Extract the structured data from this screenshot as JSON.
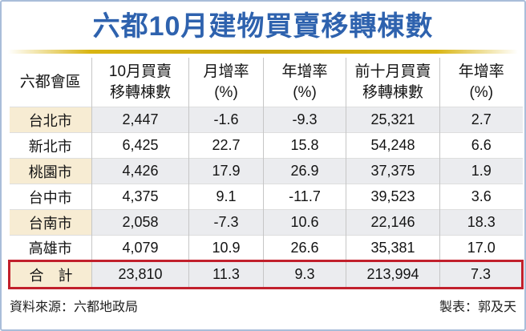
{
  "title": "六都10月建物買賣移轉棟數",
  "colors": {
    "title_blue": "#2e62ae",
    "gold_line": "#c9a50e",
    "city_stripe_cream": "#f7ecd3",
    "data_stripe_gray": "#ebecef",
    "total_outline_red": "#c1202c",
    "frame_border_blue": "#a9bdd9",
    "grid_gray": "#c6c6c6"
  },
  "table": {
    "headers": [
      {
        "line1": "六都會區",
        "line2": ""
      },
      {
        "line1": "10月買賣",
        "line2": "移轉棟數"
      },
      {
        "line1": "月增率",
        "line2": "(%)"
      },
      {
        "line1": "年增率",
        "line2": "(%)"
      },
      {
        "line1": "前十月買賣",
        "line2": "移轉棟數"
      },
      {
        "line1": "年增率",
        "line2": "(%)"
      }
    ],
    "rows": [
      {
        "city": "台北市",
        "values": [
          "2,447",
          "-1.6",
          "-9.3",
          "25,321",
          "2.7"
        ]
      },
      {
        "city": "新北市",
        "values": [
          "6,425",
          "22.7",
          "15.8",
          "54,248",
          "6.6"
        ]
      },
      {
        "city": "桃園市",
        "values": [
          "4,426",
          "17.9",
          "26.9",
          "37,375",
          "1.9"
        ]
      },
      {
        "city": "台中市",
        "values": [
          "4,375",
          "9.1",
          "-11.7",
          "39,523",
          "3.6"
        ]
      },
      {
        "city": "台南市",
        "values": [
          "2,058",
          "-7.3",
          "10.6",
          "22,146",
          "18.3"
        ]
      },
      {
        "city": "高雄市",
        "values": [
          "4,079",
          "10.9",
          "26.6",
          "35,381",
          "17.0"
        ]
      }
    ],
    "total": {
      "city": "合　計",
      "values": [
        "23,810",
        "11.3",
        "9.3",
        "213,994",
        "7.3"
      ]
    }
  },
  "footer": {
    "source": "資料來源：六都地政局",
    "credit": "製表：郭及天"
  },
  "chart_data": {
    "type": "table",
    "title": "六都10月建物買賣移轉棟數",
    "columns": [
      "六都會區",
      "10月買賣移轉棟數",
      "月增率(%)",
      "年增率(%)",
      "前十月買賣移轉棟數",
      "年增率(%)"
    ],
    "rows": [
      [
        "台北市",
        2447,
        -1.6,
        -9.3,
        25321,
        2.7
      ],
      [
        "新北市",
        6425,
        22.7,
        15.8,
        54248,
        6.6
      ],
      [
        "桃園市",
        4426,
        17.9,
        26.9,
        37375,
        1.9
      ],
      [
        "台中市",
        4375,
        9.1,
        -11.7,
        39523,
        3.6
      ],
      [
        "台南市",
        2058,
        -7.3,
        10.6,
        22146,
        18.3
      ],
      [
        "高雄市",
        4079,
        10.9,
        26.6,
        35381,
        17.0
      ],
      [
        "合計",
        23810,
        11.3,
        9.3,
        213994,
        7.3
      ]
    ],
    "source": "資料來源：六都地政局",
    "credit": "製表：郭及天",
    "layout_hints": "total row outlined in red; odd rows striped (cream city cell, gray value cells); gold divider under blue bold title"
  }
}
